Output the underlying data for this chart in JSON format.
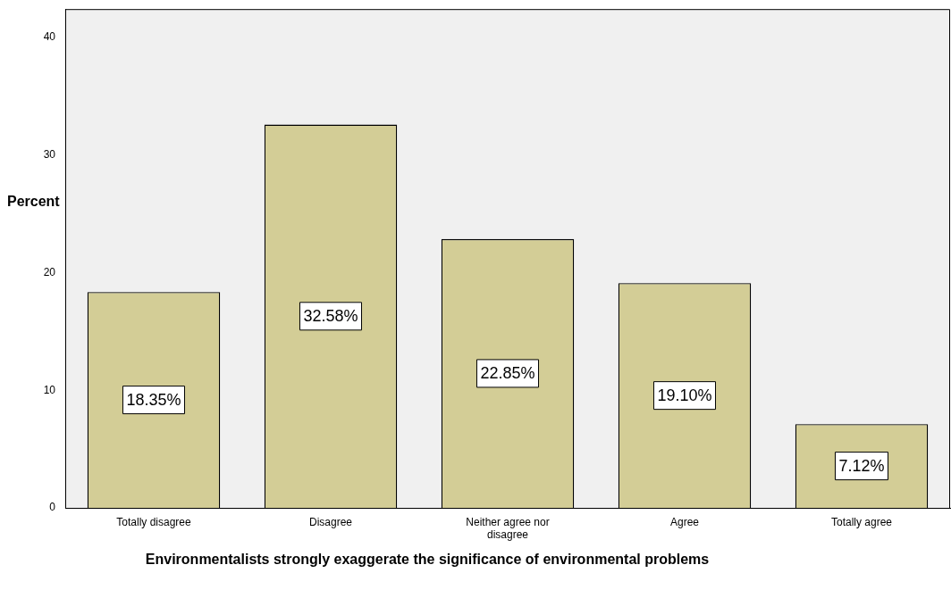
{
  "chart_data": {
    "type": "bar",
    "categories": [
      "Totally disagree",
      "Disagree",
      "Neither agree nor disagree",
      "Agree",
      "Totally agree"
    ],
    "values": [
      18.35,
      32.58,
      22.85,
      19.1,
      7.12
    ],
    "value_labels": [
      "18.35%",
      "32.58%",
      "22.85%",
      "19.10%",
      "7.12%"
    ],
    "color": "#d3cd96",
    "ylim": [
      0,
      42.4
    ],
    "yticks": [
      0,
      10,
      20,
      30,
      40
    ],
    "ylabel": "Percent",
    "xlabel": "Environmentalists strongly exaggerate the significance of environmental problems",
    "legend": false
  }
}
